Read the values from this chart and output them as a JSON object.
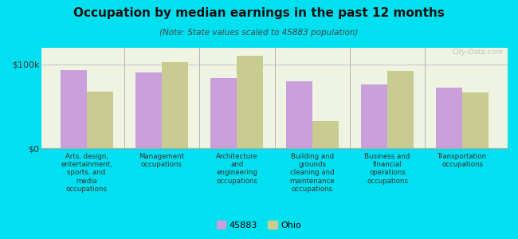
{
  "title": "Occupation by median earnings in the past 12 months",
  "subtitle": "(Note: State values scaled to 45883 population)",
  "categories": [
    "Arts, design,\nentertainment,\nsports, and\nmedia\noccupations",
    "Management\noccupations",
    "Architecture\nand\nengineering\noccupations",
    "Building and\ngrounds\ncleaning and\nmaintenance\noccupations",
    "Business and\nfinancial\noperations\noccupations",
    "Transportation\noccupations"
  ],
  "values_45883": [
    93000,
    90000,
    84000,
    80000,
    76000,
    72000
  ],
  "values_ohio": [
    68000,
    103000,
    110000,
    32000,
    92000,
    67000
  ],
  "color_45883": "#c9a0dc",
  "color_ohio": "#c8cc90",
  "background_outer": "#00e0f0",
  "background_chart": "#eef3e2",
  "ylim": [
    0,
    120000
  ],
  "yticks": [
    0,
    100000
  ],
  "ytick_labels": [
    "$0",
    "$100k"
  ],
  "legend_label_45883": "45883",
  "legend_label_ohio": "Ohio",
  "watermark": "City-Data.com"
}
